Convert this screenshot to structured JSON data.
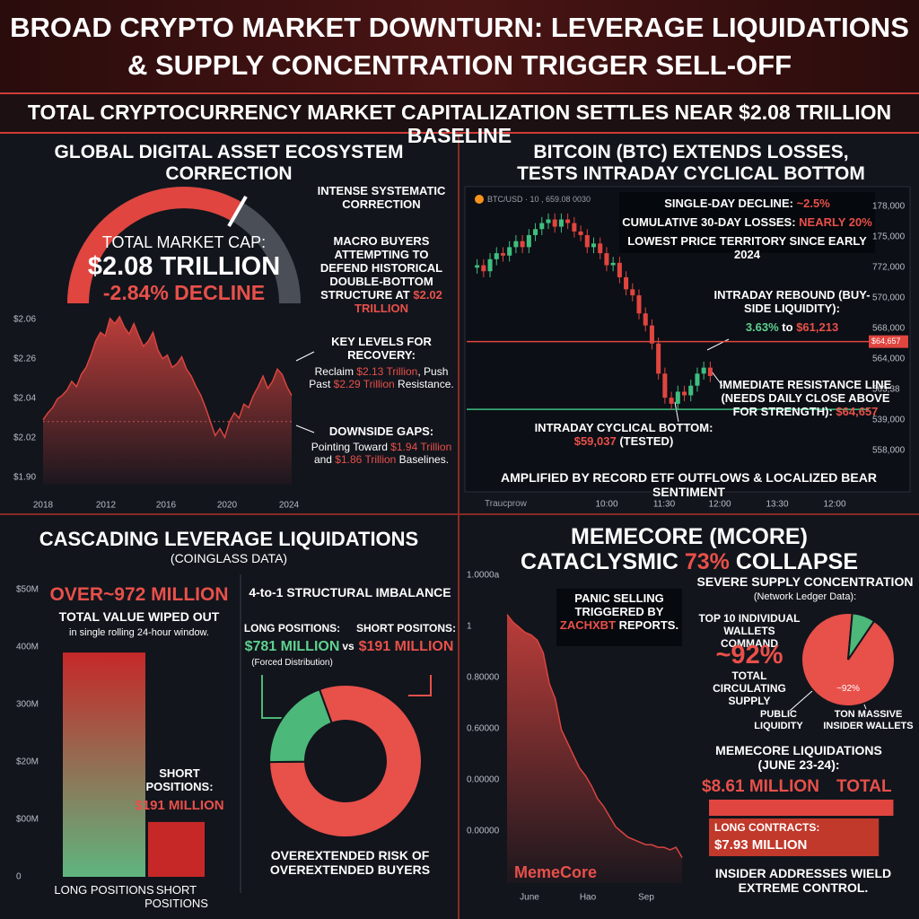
{
  "header": {
    "title": "BROAD CRYPTO MARKET DOWNTURN: LEVERAGE LIQUIDATIONS & SUPPLY CONCENTRATION TRIGGER SELL-OFF",
    "subtitle": "TOTAL CRYPTOCURRENCY MARKET CAPITALIZATION SETTLES NEAR $2.08 TRILLION BASELINE"
  },
  "panels": {
    "market": {
      "title": "GLOBAL DIGITAL ASSET ECOSYSTEM CORRECTION",
      "gauge": {
        "label": "TOTAL MARKET CAP:",
        "value": "$2.08 TRILLION",
        "change": "-2.84% DECLINE"
      },
      "notes": [
        [
          "INTENSE SYSTEMATIC CORRECTION"
        ],
        [
          "MACRO BUYERS ATTEMPTING TO DEFEND HISTORICAL DOUBLE-BOTTOM STRUCTURE AT ",
          {
            "text": "$2.02 TRILLION",
            "color": "#e8504a"
          }
        ],
        [
          "KEY LEVELS FOR RECOVERY:"
        ],
        [
          "Reclaim ",
          {
            "text": "$2.13 Trillion",
            "color": "#e8504a"
          },
          ", Push Past ",
          {
            "text": "$2.29 Trillion",
            "color": "#e8504a"
          },
          " Resistance."
        ],
        [
          "DOWNSIDE GAPS:"
        ],
        [
          "Pointing Toward ",
          {
            "text": "$1.94 Trillion",
            "color": "#e8504a"
          },
          " and ",
          {
            "text": "$1.86 Trillion",
            "color": "#e8504a"
          },
          " Baselines."
        ]
      ]
    },
    "btc": {
      "title": "BITCOIN (BTC) EXTENDS LOSSES, TESTS INTRADAY CYCLICAL BOTTOM",
      "ticker": "BTC/USD · 10 , 659.08 0030",
      "brand": "Traucprow",
      "notes": [
        [
          "SINGLE-DAY DECLINE: ",
          {
            "text": "~2.5%",
            "color": "#e8504a"
          }
        ],
        [
          "CUMULATIVE 30-DAY LOSSES: ",
          {
            "text": "NEARLY 20%",
            "color": "#e8504a"
          }
        ],
        [
          "LOWEST PRICE TERRITORY SINCE EARLY 2024"
        ],
        [
          "INTRADAY REBOUND (BUY-SIDE LIQUIDITY):"
        ],
        [
          {
            "text": "3.63%",
            "color": "#5fd08f"
          },
          " to ",
          {
            "text": "$61,213",
            "color": "#e8504a"
          }
        ],
        [
          "IMMEDIATE RESISTANCE LINE (NEEDS DAILY CLOSE ABOVE FOR STRENGTH): ",
          {
            "text": "$64,657",
            "color": "#e8504a"
          }
        ],
        [
          "INTRADAY CYCLICAL BOTTOM: ",
          {
            "text": "$59,037",
            "color": "#e8504a"
          },
          " (TESTED)"
        ]
      ],
      "footer": "AMPLIFIED BY RECORD ETF OUTFLOWS & LOCALIZED BEAR SENTIMENT"
    },
    "leverage": {
      "title": "CASCADING LEVERAGE LIQUIDATIONS",
      "subtitle": "(COINGLASS DATA)",
      "headline": "OVER~972 MILLION",
      "headline_sub": "TOTAL VALUE WIPED OUT",
      "headline_note": "in single rolling 24-hour window.",
      "short_label": "SHORT POSITIONS:",
      "short_value": "$191 MILLION",
      "imbalance": "4-to-1 STRUCTURAL IMBALANCE",
      "long_label2": "LONG POSITIONS:",
      "long_value2": "$781 MILLION",
      "vs": "vs",
      "short_label2": "SHORT POSITONS:",
      "short_value2": "$191 MILLION",
      "forced": "(Forced Distribution)",
      "footer": "OVEREXTENDED RISK OF OVEREXTENDED BUYERS"
    },
    "memecore": {
      "title": "MEMECORE (MCORE)",
      "headline": [
        "CATACLYSMIC ",
        {
          "text": "73%",
          "color": "#e8504a"
        },
        " COLLAPSE"
      ],
      "note": [
        "PANIC SELLING TRIGGERED BY ",
        {
          "text": "ZACHXBT",
          "color": "#e8504a"
        },
        " REPORTS."
      ],
      "chart_label": "MemeCore",
      "supply_title": "SEVERE SUPPLY CONCENTRATION",
      "supply_source": "(Network Ledger Data):",
      "supply_lead": "TOP 10 INDIVIDUAL WALLETS COMMAND",
      "supply_value": "~92%",
      "supply_tail": "TOTAL CIRCULATING SUPPLY",
      "pie_label": "~92%",
      "liq_title": "MEMECORE LIQUIDATIONS (JUNE 23-24):",
      "total_word": "TOTAL",
      "long_word": "LONG CONTRACTS:",
      "footer": "INSIDER ADDRESSES WIELD EXTREME CONTROL."
    }
  },
  "chart_data": [
    {
      "type": "area",
      "color": "#d9443f",
      "x_labels": [
        "2018",
        "2012",
        "2016",
        "2020",
        "2024"
      ],
      "y_labels": [
        "$2.06",
        "$2.26",
        "$2.04",
        "$2.02",
        "$1.90"
      ],
      "ylim": [
        0,
        100
      ],
      "values": [
        37,
        41,
        44,
        49,
        51,
        54,
        59,
        56,
        63,
        67,
        74,
        82,
        87,
        85,
        95,
        92,
        96,
        90,
        86,
        92,
        85,
        79,
        82,
        87,
        77,
        72,
        74,
        67,
        69,
        73,
        66,
        62,
        56,
        51,
        44,
        36,
        28,
        32,
        27,
        36,
        41,
        38,
        46,
        44,
        51,
        56,
        62,
        55,
        59,
        66,
        63,
        56,
        51
      ],
      "reference_lines": [
        {
          "value": 36,
          "color": "#c0504d"
        }
      ]
    },
    {
      "type": "candlestick",
      "up_color": "#3fbf7f",
      "down_color": "#e0453f",
      "x_labels": [
        "10:00",
        "11:30",
        "12:00",
        "13:30",
        "12:00"
      ],
      "y_labels": [
        "178,000",
        "175,000",
        "772,000",
        "570,000",
        "568,000",
        "564,000",
        "563,38",
        "539,000",
        "558,000"
      ],
      "ylim": [
        58000,
        77000
      ],
      "open": [
        70800,
        71000,
        70500,
        71500,
        72000,
        71800,
        72500,
        73000,
        72500,
        73500,
        74000,
        74500,
        74800,
        74200,
        74800,
        74500,
        73800,
        73500,
        72500,
        72800,
        72000,
        71000,
        71200,
        70000,
        69000,
        68500,
        67000,
        66000,
        64500,
        62000,
        60000,
        59500,
        60500,
        60200,
        61000,
        62000,
        62500
      ],
      "high": [
        71500,
        71500,
        72000,
        72500,
        72500,
        73000,
        73500,
        73500,
        74000,
        74500,
        75000,
        75300,
        75300,
        75300,
        75300,
        75000,
        74300,
        74000,
        73300,
        73300,
        72500,
        71700,
        71700,
        70500,
        69500,
        69000,
        67500,
        66500,
        65000,
        62500,
        60500,
        61000,
        61000,
        61500,
        62500,
        63000,
        63000
      ],
      "low": [
        70300,
        70000,
        70000,
        71000,
        71300,
        71300,
        72000,
        72000,
        72000,
        73000,
        73500,
        74000,
        73700,
        73700,
        74000,
        73300,
        73000,
        72000,
        72000,
        71500,
        70500,
        70500,
        69500,
        68500,
        68000,
        66500,
        65500,
        64000,
        61500,
        59500,
        59000,
        59000,
        59700,
        59700,
        60500,
        61500,
        61300
      ],
      "close": [
        71000,
        70500,
        71500,
        72000,
        71800,
        72500,
        73000,
        72500,
        73500,
        74000,
        74500,
        74800,
        74200,
        74800,
        74500,
        73800,
        73500,
        72500,
        72800,
        72000,
        71000,
        71200,
        70000,
        69000,
        68500,
        67000,
        66000,
        64500,
        62000,
        60000,
        59500,
        60500,
        60200,
        61000,
        62000,
        62500,
        61800
      ],
      "reference_lines": [
        {
          "value": 64657,
          "label": "$64,657",
          "color": "#e0453f"
        },
        {
          "value": 59037,
          "color": "#3fbf7f"
        }
      ]
    },
    {
      "type": "bar",
      "categories": [
        "LONG POSITIONS",
        "SHORT POSITIONS"
      ],
      "values": [
        781,
        191
      ],
      "colors": [
        "#5fb57f",
        "#c62828"
      ],
      "y_labels": [
        "$50M",
        "400M",
        "300M",
        "$20M",
        "$00M",
        "0"
      ],
      "ylim": [
        0,
        1000
      ]
    },
    {
      "type": "donut",
      "values": [
        781,
        191
      ],
      "colors": [
        "#e8504a",
        "#4cb87a"
      ]
    },
    {
      "type": "area",
      "color": "#d9443f",
      "x_labels": [
        "June",
        "Hao",
        "Sep"
      ],
      "y_labels": [
        "1.0000a",
        "1",
        "0.80000",
        "0.60000",
        "0.00000",
        "0.00000"
      ],
      "ylim": [
        0,
        1.2
      ],
      "values": [
        1.05,
        1.02,
        1.0,
        0.98,
        0.97,
        0.95,
        0.9,
        0.78,
        0.72,
        0.6,
        0.55,
        0.5,
        0.45,
        0.42,
        0.38,
        0.33,
        0.3,
        0.26,
        0.22,
        0.2,
        0.18,
        0.17,
        0.16,
        0.15,
        0.15,
        0.14,
        0.14,
        0.13,
        0.14,
        0.1
      ]
    },
    {
      "type": "pie",
      "categories": [
        "TON MASSIVE INSIDER WALLETS",
        "PUBLIC LIQUIDITY"
      ],
      "values": [
        92,
        8
      ],
      "colors": [
        "#e8504a",
        "#4cb87a"
      ]
    },
    {
      "type": "hbar",
      "values": [
        8.61,
        7.93
      ],
      "value_labels": [
        "$8.61 MILLION",
        "$7.93 MILLION"
      ],
      "colors": [
        "#e0453f",
        "#c0392b"
      ],
      "xlim": [
        0,
        8.8
      ]
    }
  ]
}
